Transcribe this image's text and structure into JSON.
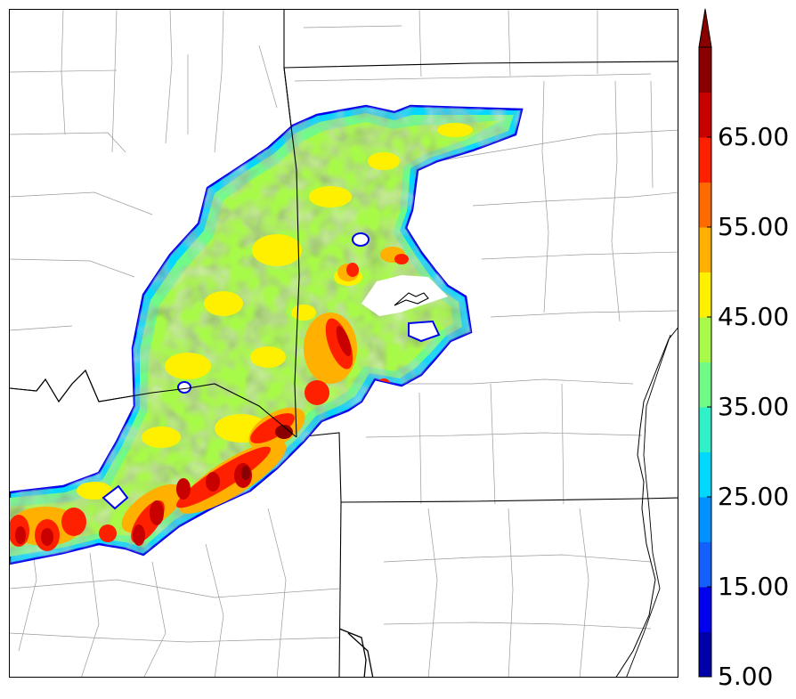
{
  "colorbar": {
    "colors": [
      "#0000aa",
      "#0000ee",
      "#1460ff",
      "#0090ff",
      "#00d8ff",
      "#30f0c8",
      "#70fa88",
      "#a8fa48",
      "#fff000",
      "#ffb000",
      "#ff6a00",
      "#ff2000",
      "#c80000",
      "#8a0000"
    ],
    "tick_labels": [
      "5.00",
      "15.00",
      "25.00",
      "35.00",
      "45.00",
      "55.00",
      "65.00"
    ],
    "tick_values": [
      5,
      15,
      25,
      35,
      45,
      55,
      65
    ],
    "extend": "max"
  }
}
